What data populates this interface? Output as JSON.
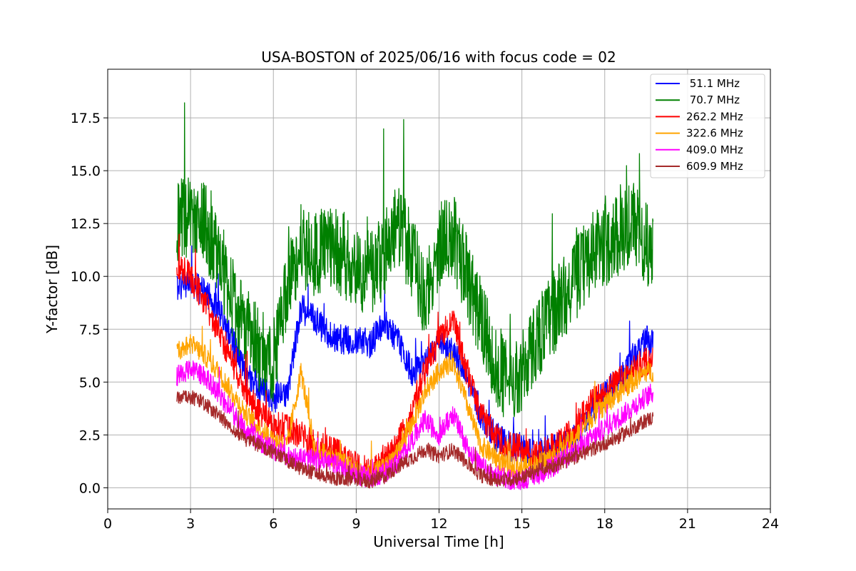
{
  "chart_data": {
    "type": "line",
    "title": "USA-BOSTON of 2025/06/16 with focus code = 02",
    "xlabel": "Universal Time [h]",
    "ylabel": "Y-factor [dB]",
    "xlim": [
      0,
      24
    ],
    "ylim": [
      -1.0,
      19.8
    ],
    "xticks": [
      0,
      3,
      6,
      9,
      12,
      15,
      18,
      21,
      24
    ],
    "yticks": [
      0.0,
      2.5,
      5.0,
      7.5,
      10.0,
      12.5,
      15.0,
      17.5
    ],
    "grid": true,
    "legend_position": "top-right",
    "series": [
      {
        "name": " 51.1 MHz",
        "color": "#0000ff",
        "x": [
          2.5,
          3.0,
          3.5,
          4.0,
          4.5,
          5.0,
          5.5,
          6.0,
          6.5,
          7.0,
          7.5,
          8.0,
          8.5,
          9.0,
          9.5,
          10.0,
          10.5,
          11.0,
          11.5,
          12.0,
          12.5,
          13.0,
          13.5,
          14.0,
          14.5,
          15.0,
          15.5,
          16.0,
          16.5,
          17.0,
          17.5,
          18.0,
          18.5,
          19.0,
          19.5,
          19.75
        ],
        "values": [
          9.5,
          9.8,
          9.2,
          8.5,
          7.0,
          5.5,
          4.8,
          4.2,
          4.5,
          8.5,
          8.0,
          7.2,
          7.0,
          7.0,
          6.8,
          7.8,
          7.0,
          5.5,
          5.8,
          7.0,
          6.5,
          5.2,
          3.5,
          2.5,
          2.0,
          1.8,
          1.8,
          1.8,
          2.0,
          2.5,
          3.5,
          4.5,
          5.0,
          6.0,
          7.0,
          6.8
        ],
        "noise": 0.7
      },
      {
        "name": " 70.7 MHz",
        "color": "#008000",
        "x": [
          2.5,
          3.0,
          3.5,
          4.0,
          4.5,
          5.0,
          5.5,
          6.0,
          6.5,
          7.0,
          7.5,
          8.0,
          8.5,
          9.0,
          9.5,
          10.0,
          10.5,
          11.0,
          11.5,
          12.0,
          12.5,
          13.0,
          13.5,
          14.0,
          14.5,
          15.0,
          15.5,
          16.0,
          16.5,
          17.0,
          17.5,
          18.0,
          18.5,
          19.0,
          19.5,
          19.75
        ],
        "values": [
          12.5,
          13.0,
          12.5,
          11.0,
          9.0,
          7.5,
          6.5,
          6.0,
          9.5,
          11.5,
          11.0,
          11.5,
          11.0,
          10.5,
          10.0,
          11.0,
          12.5,
          11.0,
          9.0,
          11.5,
          12.0,
          10.0,
          8.0,
          6.0,
          5.0,
          5.5,
          7.0,
          8.0,
          9.0,
          10.0,
          11.0,
          11.5,
          12.0,
          12.5,
          11.5,
          11.0
        ],
        "noise": 2.0
      },
      {
        "name": "262.2 MHz",
        "color": "#ff0000",
        "x": [
          2.5,
          3.0,
          3.5,
          4.0,
          4.5,
          5.0,
          5.5,
          6.0,
          6.5,
          7.0,
          7.5,
          8.0,
          8.5,
          9.0,
          9.5,
          10.0,
          10.5,
          11.0,
          11.5,
          12.0,
          12.5,
          13.0,
          13.5,
          14.0,
          14.5,
          15.0,
          15.5,
          16.0,
          16.5,
          17.0,
          17.5,
          18.0,
          18.5,
          19.0,
          19.5,
          19.75
        ],
        "values": [
          10.5,
          10.0,
          8.8,
          7.5,
          6.0,
          4.5,
          3.5,
          3.0,
          2.8,
          2.5,
          2.0,
          1.8,
          1.5,
          1.0,
          0.8,
          1.2,
          2.0,
          3.5,
          5.5,
          7.0,
          8.0,
          5.5,
          3.5,
          2.5,
          2.0,
          1.8,
          1.5,
          1.8,
          2.2,
          3.0,
          4.0,
          4.5,
          5.0,
          5.5,
          6.0,
          6.0
        ],
        "noise": 0.7
      },
      {
        "name": "322.6 MHz",
        "color": "#ffa500",
        "x": [
          2.5,
          3.0,
          3.5,
          4.0,
          4.5,
          5.0,
          5.5,
          6.0,
          6.5,
          7.0,
          7.5,
          8.0,
          8.5,
          9.0,
          9.5,
          10.0,
          10.5,
          11.0,
          11.5,
          12.0,
          12.5,
          13.0,
          13.5,
          14.0,
          14.5,
          15.0,
          15.5,
          16.0,
          16.5,
          17.0,
          17.5,
          18.0,
          18.5,
          19.0,
          19.5,
          19.75
        ],
        "values": [
          6.5,
          6.8,
          6.3,
          5.5,
          4.5,
          3.5,
          2.8,
          2.3,
          2.0,
          5.5,
          1.8,
          1.5,
          1.3,
          0.8,
          0.6,
          0.9,
          1.6,
          3.0,
          4.5,
          5.5,
          6.0,
          4.0,
          2.0,
          1.5,
          1.0,
          1.0,
          1.1,
          1.4,
          1.8,
          2.5,
          3.3,
          3.9,
          4.5,
          5.0,
          5.5,
          5.5
        ],
        "noise": 0.5
      },
      {
        "name": "409.0 MHz",
        "color": "#ff00ff",
        "x": [
          2.5,
          3.0,
          3.5,
          4.0,
          4.5,
          5.0,
          5.5,
          6.0,
          6.5,
          7.0,
          7.5,
          8.0,
          8.5,
          9.0,
          9.5,
          10.0,
          10.5,
          11.0,
          11.5,
          12.0,
          12.5,
          13.0,
          13.5,
          14.0,
          14.5,
          15.0,
          15.5,
          16.0,
          16.5,
          17.0,
          17.5,
          18.0,
          18.5,
          19.0,
          19.5,
          19.75
        ],
        "values": [
          5.3,
          5.6,
          5.3,
          4.5,
          3.6,
          2.8,
          2.2,
          1.8,
          1.5,
          1.4,
          1.3,
          1.2,
          1.0,
          0.6,
          0.5,
          0.7,
          1.2,
          2.2,
          3.2,
          2.5,
          3.5,
          2.0,
          1.0,
          0.6,
          0.4,
          0.4,
          0.6,
          0.9,
          1.3,
          1.8,
          2.3,
          2.8,
          3.3,
          3.8,
          4.3,
          4.5
        ],
        "noise": 0.5
      },
      {
        "name": "609.9 MHz",
        "color": "#a52a2a",
        "x": [
          2.5,
          3.0,
          3.5,
          4.0,
          4.5,
          5.0,
          5.5,
          6.0,
          6.5,
          7.0,
          7.5,
          8.0,
          8.5,
          9.0,
          9.5,
          10.0,
          10.5,
          11.0,
          11.5,
          12.0,
          12.5,
          13.0,
          13.5,
          14.0,
          14.5,
          15.0,
          15.5,
          16.0,
          16.5,
          17.0,
          17.5,
          18.0,
          18.5,
          19.0,
          19.5,
          19.75
        ],
        "values": [
          4.2,
          4.3,
          4.0,
          3.5,
          2.8,
          2.3,
          2.0,
          1.7,
          1.3,
          0.9,
          0.7,
          0.5,
          0.4,
          0.4,
          0.3,
          0.5,
          1.0,
          1.4,
          1.8,
          1.5,
          1.8,
          1.2,
          0.6,
          0.4,
          0.4,
          0.5,
          0.8,
          1.0,
          1.2,
          1.5,
          1.8,
          2.1,
          2.4,
          2.8,
          3.2,
          3.3
        ],
        "noise": 0.35
      }
    ]
  }
}
